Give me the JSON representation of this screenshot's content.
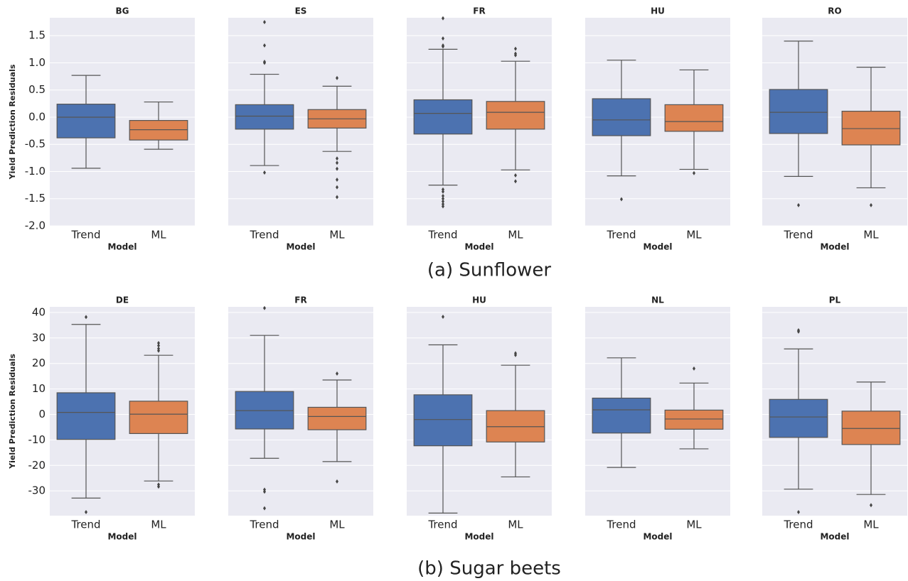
{
  "chart_data": [
    {
      "type": "box",
      "title": "BG",
      "xlabel": "Model",
      "ylabel": "Yield Prediction Residuals",
      "categories": [
        "Trend",
        "ML"
      ],
      "colors": [
        "#4c72b0",
        "#dd8452"
      ],
      "boxes": [
        {
          "whisker_low": -0.94,
          "q1": -0.38,
          "median": 0.0,
          "q3": 0.24,
          "whisker_high": 0.77,
          "outliers": []
        },
        {
          "whisker_low": -0.59,
          "q1": -0.42,
          "median": -0.23,
          "q3": -0.06,
          "whisker_high": 0.28,
          "outliers": []
        }
      ],
      "ylim": [
        -2.0,
        1.83
      ],
      "yticks": [
        {
          "value": -2,
          "label": "-2.0"
        },
        -1.5,
        {
          "value": -1,
          "label": "-1.0"
        },
        -0.5,
        {
          "value": 0,
          "label": "0.0"
        },
        0.5,
        {
          "value": 1,
          "label": "1.0"
        },
        1.5
      ],
      "ytick_labels": true,
      "grid": true
    },
    {
      "type": "box",
      "title": "ES",
      "xlabel": "Model",
      "categories": [
        "Trend",
        "ML"
      ],
      "colors": [
        "#4c72b0",
        "#dd8452"
      ],
      "boxes": [
        {
          "whisker_low": -0.89,
          "q1": -0.22,
          "median": 0.02,
          "q3": 0.23,
          "whisker_high": 0.79,
          "outliers": [
            1.75,
            1.32,
            1.02,
            1.0,
            -1.02
          ]
        },
        {
          "whisker_low": -0.63,
          "q1": -0.2,
          "median": -0.03,
          "q3": 0.14,
          "whisker_high": 0.57,
          "outliers": [
            0.72,
            -0.76,
            -0.84,
            -0.95,
            -1.15,
            -1.29,
            -1.47
          ]
        }
      ],
      "ylim": [
        -2.0,
        1.83
      ],
      "yticks": [
        -2,
        -1.5,
        -1,
        -0.5,
        0,
        0.5,
        1,
        1.5
      ],
      "ytick_labels": false,
      "grid": true
    },
    {
      "type": "box",
      "title": "FR",
      "xlabel": "Model",
      "categories": [
        "Trend",
        "ML"
      ],
      "colors": [
        "#4c72b0",
        "#dd8452"
      ],
      "boxes": [
        {
          "whisker_low": -1.25,
          "q1": -0.31,
          "median": 0.07,
          "q3": 0.32,
          "whisker_high": 1.25,
          "outliers": [
            1.82,
            1.45,
            1.32,
            1.3,
            -1.33,
            -1.37,
            -1.45,
            -1.5,
            -1.55,
            -1.6,
            -1.64
          ]
        },
        {
          "whisker_low": -0.97,
          "q1": -0.22,
          "median": 0.09,
          "q3": 0.29,
          "whisker_high": 1.03,
          "outliers": [
            1.26,
            1.17,
            1.14,
            -1.07,
            -1.18
          ]
        }
      ],
      "ylim": [
        -2.0,
        1.83
      ],
      "yticks": [
        -2,
        -1.5,
        -1,
        -0.5,
        0,
        0.5,
        1,
        1.5
      ],
      "ytick_labels": false,
      "grid": true
    },
    {
      "type": "box",
      "title": "HU",
      "xlabel": "Model",
      "categories": [
        "Trend",
        "ML"
      ],
      "colors": [
        "#4c72b0",
        "#dd8452"
      ],
      "boxes": [
        {
          "whisker_low": -1.08,
          "q1": -0.34,
          "median": -0.05,
          "q3": 0.34,
          "whisker_high": 1.05,
          "outliers": [
            -1.51
          ]
        },
        {
          "whisker_low": -0.96,
          "q1": -0.26,
          "median": -0.08,
          "q3": 0.23,
          "whisker_high": 0.87,
          "outliers": [
            -1.03
          ]
        }
      ],
      "ylim": [
        -2.0,
        1.83
      ],
      "yticks": [
        -2,
        -1.5,
        -1,
        -0.5,
        0,
        0.5,
        1,
        1.5
      ],
      "ytick_labels": false,
      "grid": true
    },
    {
      "type": "box",
      "title": "RO",
      "xlabel": "Model",
      "categories": [
        "Trend",
        "ML"
      ],
      "colors": [
        "#4c72b0",
        "#dd8452"
      ],
      "boxes": [
        {
          "whisker_low": -1.09,
          "q1": -0.3,
          "median": 0.09,
          "q3": 0.51,
          "whisker_high": 1.4,
          "outliers": [
            -1.62
          ]
        },
        {
          "whisker_low": -1.3,
          "q1": -0.51,
          "median": -0.21,
          "q3": 0.11,
          "whisker_high": 0.92,
          "outliers": [
            -1.62
          ]
        }
      ],
      "ylim": [
        -2.0,
        1.83
      ],
      "yticks": [
        -2,
        -1.5,
        -1,
        -0.5,
        0,
        0.5,
        1,
        1.5
      ],
      "ytick_labels": false,
      "grid": true
    },
    {
      "type": "box",
      "title": "DE",
      "xlabel": "Model",
      "ylabel": "Yield Prediction Residuals",
      "categories": [
        "Trend",
        "ML"
      ],
      "colors": [
        "#4c72b0",
        "#dd8452"
      ],
      "boxes": [
        {
          "whisker_low": -32.8,
          "q1": -9.8,
          "median": 0.8,
          "q3": 8.5,
          "whisker_high": 35.3,
          "outliers": [
            38.2,
            -38.3
          ]
        },
        {
          "whisker_low": -26.1,
          "q1": -7.5,
          "median": 0.1,
          "q3": 5.2,
          "whisker_high": 23.2,
          "outliers": [
            28,
            27,
            25.8,
            25,
            -27.5,
            -28.3
          ]
        }
      ],
      "ylim": [
        -39.7,
        42.2
      ],
      "yticks": [
        -30,
        -20,
        -10,
        0,
        10,
        20,
        30,
        40
      ],
      "ytick_labels": true,
      "grid": true
    },
    {
      "type": "box",
      "title": "FR",
      "xlabel": "Model",
      "categories": [
        "Trend",
        "ML"
      ],
      "colors": [
        "#4c72b0",
        "#dd8452"
      ],
      "boxes": [
        {
          "whisker_low": -17.2,
          "q1": -5.7,
          "median": 1.5,
          "q3": 9,
          "whisker_high": 31,
          "outliers": [
            41.7,
            -29.5,
            -30.3,
            -36.8
          ]
        },
        {
          "whisker_low": -18.5,
          "q1": -6,
          "median": -0.8,
          "q3": 2.8,
          "whisker_high": 13.5,
          "outliers": [
            16,
            -26.3
          ]
        }
      ],
      "ylim": [
        -39.7,
        42.2
      ],
      "yticks": [
        -30,
        -20,
        -10,
        0,
        10,
        20,
        30,
        40
      ],
      "ytick_labels": false,
      "grid": true
    },
    {
      "type": "box",
      "title": "HU",
      "xlabel": "Model",
      "categories": [
        "Trend",
        "ML"
      ],
      "colors": [
        "#4c72b0",
        "#dd8452"
      ],
      "boxes": [
        {
          "whisker_low": -38.7,
          "q1": -12.3,
          "median": -2,
          "q3": 7.7,
          "whisker_high": 27.3,
          "outliers": [
            38.3
          ]
        },
        {
          "whisker_low": -24.5,
          "q1": -10.8,
          "median": -4.8,
          "q3": 1.5,
          "whisker_high": 19.3,
          "outliers": [
            24,
            23.3
          ]
        }
      ],
      "ylim": [
        -39.7,
        42.2
      ],
      "yticks": [
        -30,
        -20,
        -10,
        0,
        10,
        20,
        30,
        40
      ],
      "ytick_labels": false,
      "grid": true
    },
    {
      "type": "box",
      "title": "NL",
      "xlabel": "Model",
      "categories": [
        "Trend",
        "ML"
      ],
      "colors": [
        "#4c72b0",
        "#dd8452"
      ],
      "boxes": [
        {
          "whisker_low": -20.8,
          "q1": -7.3,
          "median": 1.8,
          "q3": 6.4,
          "whisker_high": 22.2,
          "outliers": []
        },
        {
          "whisker_low": -13.5,
          "q1": -5.8,
          "median": -1.8,
          "q3": 1.7,
          "whisker_high": 12.3,
          "outliers": [
            18
          ]
        }
      ],
      "ylim": [
        -39.7,
        42.2
      ],
      "yticks": [
        -30,
        -20,
        -10,
        0,
        10,
        20,
        30,
        40
      ],
      "ytick_labels": false,
      "grid": true
    },
    {
      "type": "box",
      "title": "PL",
      "xlabel": "Model",
      "categories": [
        "Trend",
        "ML"
      ],
      "colors": [
        "#4c72b0",
        "#dd8452"
      ],
      "boxes": [
        {
          "whisker_low": -29.3,
          "q1": -9,
          "median": -1,
          "q3": 5.9,
          "whisker_high": 25.7,
          "outliers": [
            33,
            32.5,
            -38.3
          ]
        },
        {
          "whisker_low": -31.4,
          "q1": -11.8,
          "median": -5.5,
          "q3": 1.3,
          "whisker_high": 12.7,
          "outliers": [
            -35.6
          ]
        }
      ],
      "ylim": [
        -39.7,
        42.2
      ],
      "yticks": [
        -30,
        -20,
        -10,
        0,
        10,
        20,
        30,
        40
      ],
      "ytick_labels": false,
      "grid": true
    }
  ],
  "captions": [
    "(a) Sunflower",
    "(b) Sugar beets"
  ]
}
